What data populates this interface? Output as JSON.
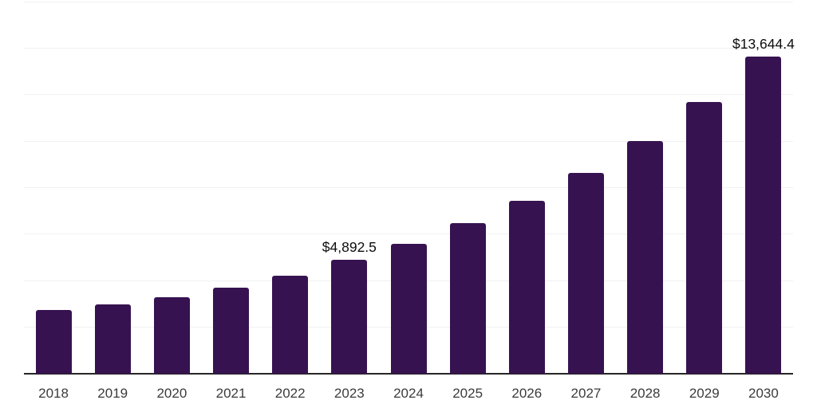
{
  "chart_data": {
    "type": "bar",
    "title": "",
    "xlabel": "",
    "ylabel": "",
    "categories": [
      "2018",
      "2019",
      "2020",
      "2021",
      "2022",
      "2023",
      "2024",
      "2025",
      "2026",
      "2027",
      "2028",
      "2029",
      "2030"
    ],
    "values": [
      2730,
      2990,
      3280,
      3700,
      4230,
      4892.5,
      5590,
      6460,
      7440,
      8620,
      10020,
      11690,
      13644.4
    ],
    "annotations": [
      {
        "category": "2023",
        "text": "$4,892.5"
      },
      {
        "category": "2030",
        "text": "$13,644.4"
      }
    ],
    "ylim": [
      0,
      16000
    ],
    "gridline_step": 2000,
    "grid": true,
    "legend": "none",
    "y_axis_labels_visible": false,
    "colors": {
      "bar": "#371250",
      "gridline": "#f1f1f1",
      "axis": "#262626",
      "x_tick_label": "#3b3b3b",
      "value_label": "#0d0d0d",
      "background": "#ffffff"
    }
  }
}
